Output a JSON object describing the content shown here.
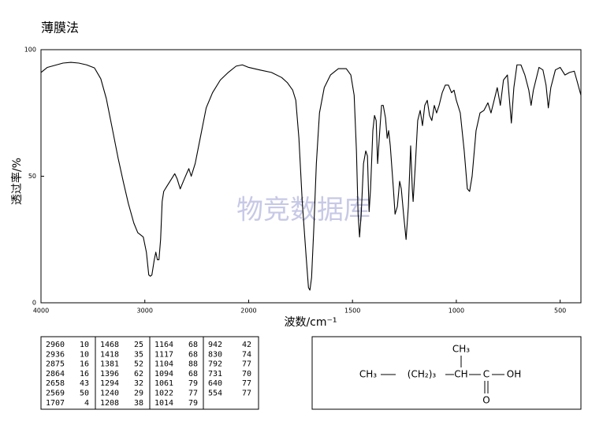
{
  "chart_data": {
    "type": "line",
    "title": "薄膜法",
    "x_label": "波数/cm⁻¹",
    "y_label": "透过率/%",
    "watermark": "物竞数据库",
    "color": "#000000",
    "xlim": [
      4000,
      400
    ],
    "ylim": [
      0,
      100
    ],
    "xticks": [
      4000,
      3000,
      2000,
      1500,
      1000,
      500
    ],
    "yticks": [
      0,
      50,
      100
    ],
    "x": [
      4000,
      3939,
      3788,
      3712,
      3636,
      3561,
      3485,
      3424,
      3371,
      3318,
      3258,
      3205,
      3159,
      3106,
      3068,
      3015,
      2985,
      2962,
      2947,
      2932,
      2909,
      2894,
      2879,
      2864,
      2848,
      2833,
      2818,
      2788,
      2742,
      2712,
      2689,
      2659,
      2629,
      2598,
      2576,
      2553,
      2515,
      2462,
      2409,
      2348,
      2273,
      2197,
      2121,
      2061,
      2000,
      1947,
      1890,
      1841,
      1814,
      1788,
      1773,
      1758,
      1742,
      1723,
      1712,
      1705,
      1697,
      1686,
      1674,
      1659,
      1636,
      1606,
      1568,
      1530,
      1508,
      1492,
      1481,
      1473,
      1466,
      1458,
      1447,
      1436,
      1428,
      1420,
      1413,
      1402,
      1394,
      1386,
      1379,
      1367,
      1360,
      1352,
      1341,
      1333,
      1326,
      1318,
      1303,
      1295,
      1284,
      1273,
      1265,
      1254,
      1242,
      1231,
      1220,
      1212,
      1208,
      1197,
      1186,
      1174,
      1163,
      1152,
      1140,
      1129,
      1118,
      1106,
      1095,
      1083,
      1068,
      1053,
      1038,
      1023,
      1011,
      1000,
      981,
      962,
      947,
      936,
      924,
      905,
      886,
      867,
      848,
      833,
      818,
      803,
      788,
      773,
      754,
      735,
      723,
      708,
      689,
      670,
      651,
      640,
      629,
      602,
      583,
      568,
      557,
      545,
      523,
      500,
      477,
      455,
      432,
      420,
      400
    ],
    "values": [
      91,
      93,
      94.7,
      95,
      94.7,
      94,
      92.8,
      88.5,
      80.7,
      69.8,
      57.3,
      47.4,
      39.3,
      31.5,
      27.7,
      26,
      20,
      11,
      10.5,
      11,
      17,
      20,
      17,
      17,
      25,
      40,
      44,
      46,
      49,
      51,
      49,
      45,
      48,
      51,
      53,
      50,
      55,
      66,
      77,
      83,
      88,
      91,
      93.5,
      94,
      93,
      92,
      91,
      89,
      87,
      84,
      80,
      65,
      40,
      18,
      6,
      5,
      10,
      30,
      55,
      75,
      85,
      90,
      92.5,
      92.5,
      90,
      82,
      60,
      35,
      26,
      35,
      55,
      60,
      58,
      36,
      45,
      68,
      74,
      72,
      55,
      70,
      78,
      78,
      73,
      65,
      68,
      62,
      45,
      35,
      38,
      48,
      45,
      35,
      25,
      38,
      62,
      45,
      40,
      55,
      72,
      76,
      70,
      78,
      80,
      74,
      72,
      78,
      75,
      78,
      83,
      86,
      86,
      83,
      84,
      80,
      75,
      60,
      45,
      44,
      50,
      68,
      75,
      76,
      79,
      75,
      80,
      85,
      78,
      88,
      90,
      71,
      85,
      94,
      94,
      90,
      84,
      78,
      84,
      93,
      92,
      86,
      77,
      85,
      92,
      93,
      90,
      91,
      91.5,
      88,
      82
    ]
  },
  "peak_table": [
    [
      [
        2960,
        10
      ],
      [
        2936,
        10
      ],
      [
        2875,
        16
      ],
      [
        2864,
        16
      ],
      [
        2658,
        43
      ],
      [
        2569,
        50
      ],
      [
        1707,
        4
      ]
    ],
    [
      [
        1468,
        25
      ],
      [
        1418,
        35
      ],
      [
        1381,
        52
      ],
      [
        1396,
        62
      ],
      [
        1294,
        32
      ],
      [
        1240,
        29
      ],
      [
        1208,
        38
      ]
    ],
    [
      [
        1164,
        68
      ],
      [
        1117,
        68
      ],
      [
        1104,
        88
      ],
      [
        1094,
        68
      ],
      [
        1061,
        79
      ],
      [
        1022,
        77
      ],
      [
        1014,
        79
      ]
    ],
    [
      [
        942,
        42
      ],
      [
        830,
        74
      ],
      [
        792,
        77
      ],
      [
        731,
        70
      ],
      [
        640,
        77
      ],
      [
        554,
        77
      ]
    ]
  ],
  "structure": {
    "branch": "CH₃",
    "chain": [
      "CH₃",
      "(CH₂)₃",
      "CH",
      "C",
      "OH"
    ],
    "carbonyl": "O"
  }
}
